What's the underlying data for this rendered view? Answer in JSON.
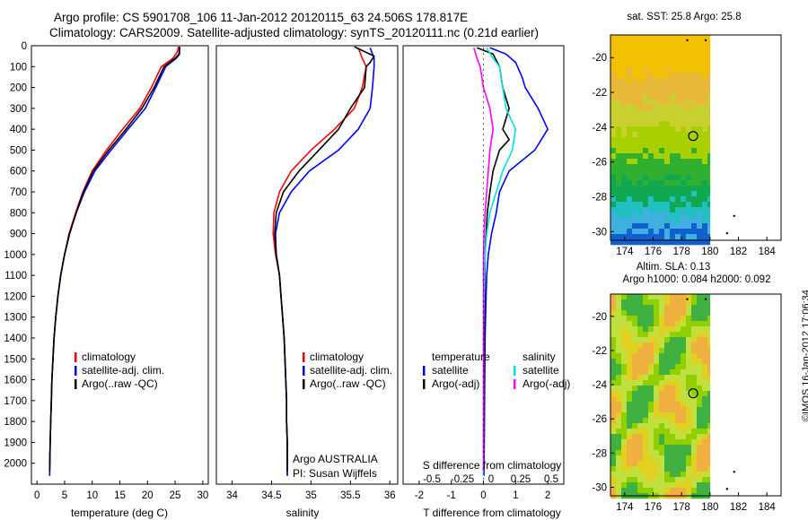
{
  "header": {
    "title_line1": "Argo profile: CS 5901708_106 11-Jan-2012 20120115_63 24.506S 178.817E",
    "title_line2": "Climatology: CARS2009. Satellite-adjusted climatology: synTS_20120111.nc (0.21d earlier)"
  },
  "stamp": "©IMOS 16-Jan-2012 17:06:34",
  "colors": {
    "climatology": "#ff0000",
    "satellite": "#0000ff",
    "argo": "#000000",
    "sal_satellite": "#00e0e0",
    "sal_argo": "#ff00ff"
  },
  "chart_data": [
    {
      "type": "line",
      "panel": "temperature",
      "xlabel": "temperature (deg C)",
      "ylabel": "",
      "xlim": [
        -1,
        31
      ],
      "ylim": [
        2100,
        0
      ],
      "xticks": [
        0,
        5,
        10,
        15,
        20,
        25,
        30
      ],
      "yticks": [
        0,
        100,
        200,
        300,
        400,
        500,
        600,
        700,
        800,
        900,
        1000,
        1100,
        1200,
        1300,
        1400,
        1500,
        1600,
        1700,
        1800,
        1900,
        2000
      ],
      "legend": [
        "climatology",
        "satellite-adj. clim.",
        "Argo(..raw -QC)"
      ],
      "series": [
        {
          "name": "climatology",
          "color": "#ff0000",
          "points": [
            [
              25.6,
              5
            ],
            [
              25.4,
              30
            ],
            [
              24.6,
              60
            ],
            [
              22.5,
              100
            ],
            [
              20.7,
              200
            ],
            [
              18.6,
              300
            ],
            [
              15.5,
              400
            ],
            [
              12.6,
              500
            ],
            [
              10.0,
              600
            ],
            [
              8.3,
              700
            ],
            [
              7.0,
              800
            ],
            [
              5.8,
              900
            ],
            [
              5.0,
              1000
            ],
            [
              4.3,
              1100
            ],
            [
              3.8,
              1200
            ],
            [
              3.4,
              1300
            ],
            [
              3.1,
              1400
            ],
            [
              2.9,
              1500
            ],
            [
              2.7,
              1600
            ],
            [
              2.6,
              1700
            ],
            [
              2.5,
              1800
            ],
            [
              2.4,
              1900
            ],
            [
              2.3,
              2000
            ],
            [
              2.3,
              2060
            ]
          ]
        },
        {
          "name": "satellite-adj. clim.",
          "color": "#0000ff",
          "points": [
            [
              25.8,
              5
            ],
            [
              25.8,
              40
            ],
            [
              25.2,
              60
            ],
            [
              23.3,
              100
            ],
            [
              21.5,
              200
            ],
            [
              19.6,
              300
            ],
            [
              16.5,
              400
            ],
            [
              13.4,
              500
            ],
            [
              10.5,
              600
            ],
            [
              8.6,
              700
            ],
            [
              7.1,
              800
            ],
            [
              5.9,
              900
            ],
            [
              5.0,
              1000
            ],
            [
              4.3,
              1100
            ],
            [
              3.8,
              1200
            ],
            [
              3.4,
              1300
            ],
            [
              3.1,
              1400
            ],
            [
              2.9,
              1500
            ],
            [
              2.7,
              1600
            ],
            [
              2.6,
              1700
            ],
            [
              2.5,
              1800
            ],
            [
              2.4,
              1900
            ],
            [
              2.3,
              2000
            ],
            [
              2.3,
              2060
            ]
          ]
        },
        {
          "name": "Argo(..raw -QC)",
          "color": "#000000",
          "points": [
            [
              25.8,
              5
            ],
            [
              25.7,
              40
            ],
            [
              25.0,
              60
            ],
            [
              23.0,
              100
            ],
            [
              21.2,
              200
            ],
            [
              19.0,
              300
            ],
            [
              16.1,
              400
            ],
            [
              13.0,
              500
            ],
            [
              10.2,
              600
            ],
            [
              8.4,
              700
            ],
            [
              7.1,
              800
            ],
            [
              5.9,
              900
            ],
            [
              5.0,
              1000
            ],
            [
              4.3,
              1100
            ],
            [
              3.8,
              1200
            ],
            [
              3.4,
              1300
            ],
            [
              3.1,
              1400
            ],
            [
              2.9,
              1500
            ],
            [
              2.7,
              1600
            ],
            [
              2.6,
              1700
            ],
            [
              2.5,
              1800
            ],
            [
              2.4,
              1900
            ],
            [
              2.35,
              2000
            ],
            [
              2.3,
              2040
            ]
          ]
        }
      ]
    },
    {
      "type": "line",
      "panel": "salinity",
      "xlabel": "salinity",
      "xlim": [
        33.8,
        36.1
      ],
      "ylim": [
        2100,
        0
      ],
      "xticks": [
        34,
        34.5,
        35,
        35.5,
        36
      ],
      "legend": [
        "climatology",
        "satellite-adj. clim.",
        "Argo(..raw -QC)"
      ],
      "annotation": [
        "Argo AUSTRALIA",
        "PI: Susan Wijffels"
      ],
      "series": [
        {
          "name": "climatology",
          "color": "#ff0000",
          "points": [
            [
              35.6,
              10
            ],
            [
              35.65,
              60
            ],
            [
              35.7,
              100
            ],
            [
              35.65,
              200
            ],
            [
              35.55,
              300
            ],
            [
              35.3,
              400
            ],
            [
              35.0,
              500
            ],
            [
              34.75,
              600
            ],
            [
              34.6,
              700
            ],
            [
              34.53,
              800
            ],
            [
              34.52,
              900
            ],
            [
              34.55,
              1000
            ],
            [
              34.6,
              1100
            ],
            [
              34.62,
              1200
            ],
            [
              34.64,
              1300
            ],
            [
              34.66,
              1400
            ],
            [
              34.67,
              1500
            ],
            [
              34.68,
              1600
            ],
            [
              34.69,
              1700
            ],
            [
              34.69,
              1800
            ],
            [
              34.7,
              1900
            ],
            [
              34.7,
              2000
            ],
            [
              34.7,
              2060
            ]
          ]
        },
        {
          "name": "satellite-adj. clim.",
          "color": "#0000ff",
          "points": [
            [
              35.75,
              10
            ],
            [
              35.8,
              60
            ],
            [
              35.8,
              100
            ],
            [
              35.78,
              200
            ],
            [
              35.75,
              300
            ],
            [
              35.6,
              400
            ],
            [
              35.35,
              500
            ],
            [
              34.98,
              600
            ],
            [
              34.75,
              700
            ],
            [
              34.6,
              800
            ],
            [
              34.55,
              900
            ],
            [
              34.56,
              1000
            ],
            [
              34.6,
              1100
            ],
            [
              34.62,
              1200
            ],
            [
              34.64,
              1300
            ],
            [
              34.66,
              1400
            ],
            [
              34.67,
              1500
            ],
            [
              34.68,
              1600
            ],
            [
              34.69,
              1700
            ],
            [
              34.69,
              1800
            ],
            [
              34.7,
              1900
            ],
            [
              34.7,
              2000
            ],
            [
              34.7,
              2060
            ]
          ]
        },
        {
          "name": "Argo(..raw -QC)",
          "color": "#000000",
          "points": [
            [
              35.55,
              5
            ],
            [
              35.8,
              50
            ],
            [
              35.75,
              80
            ],
            [
              35.7,
              100
            ],
            [
              35.68,
              200
            ],
            [
              35.5,
              300
            ],
            [
              35.35,
              400
            ],
            [
              35.1,
              500
            ],
            [
              34.85,
              600
            ],
            [
              34.65,
              700
            ],
            [
              34.56,
              800
            ],
            [
              34.54,
              900
            ],
            [
              34.56,
              1000
            ],
            [
              34.6,
              1100
            ],
            [
              34.62,
              1200
            ],
            [
              34.64,
              1300
            ],
            [
              34.66,
              1400
            ],
            [
              34.67,
              1500
            ],
            [
              34.68,
              1600
            ],
            [
              34.69,
              1700
            ],
            [
              34.69,
              1800
            ],
            [
              34.7,
              1900
            ],
            [
              34.7,
              2000
            ],
            [
              34.7,
              2040
            ]
          ]
        }
      ]
    },
    {
      "type": "line",
      "panel": "difference",
      "xlabel": "T difference from climatology",
      "xlabel_top": "S difference from climatology",
      "xlim": [
        -2.5,
        2.5
      ],
      "ylim": [
        2100,
        0
      ],
      "xticks_T": [
        -2,
        -1,
        0,
        1,
        2
      ],
      "xticks_S": [
        "-0.5",
        "-0.25",
        "0",
        "0.25",
        "0.5"
      ],
      "legend_temperature": [
        "temperature",
        "satellite",
        "Argo(-adj)"
      ],
      "legend_salinity": [
        "salinity",
        "satellite",
        "Argo(-adj)"
      ],
      "series": [
        {
          "name": "temperature satellite",
          "color": "#0000ff",
          "points": [
            [
              0.2,
              10
            ],
            [
              0.7,
              40
            ],
            [
              1.0,
              80
            ],
            [
              1.2,
              150
            ],
            [
              1.3,
              200
            ],
            [
              1.7,
              300
            ],
            [
              2.0,
              400
            ],
            [
              1.6,
              500
            ],
            [
              0.8,
              600
            ],
            [
              0.5,
              700
            ],
            [
              0.4,
              800
            ],
            [
              0.25,
              900
            ],
            [
              0.15,
              1000
            ],
            [
              0.1,
              1100
            ],
            [
              0.08,
              1200
            ],
            [
              0.05,
              1400
            ],
            [
              0.04,
              1600
            ],
            [
              0.03,
              1800
            ],
            [
              0.02,
              2000
            ],
            [
              0.02,
              2060
            ]
          ]
        },
        {
          "name": "temperature Argo(-adj)",
          "color": "#000000",
          "points": [
            [
              -0.2,
              10
            ],
            [
              0.3,
              40
            ],
            [
              0.5,
              100
            ],
            [
              0.6,
              200
            ],
            [
              0.8,
              300
            ],
            [
              0.6,
              400
            ],
            [
              0.8,
              450
            ],
            [
              0.5,
              500
            ],
            [
              0.3,
              600
            ],
            [
              0.2,
              700
            ],
            [
              0.12,
              800
            ],
            [
              0.08,
              900
            ],
            [
              0.05,
              1000
            ],
            [
              0.04,
              1200
            ],
            [
              0.03,
              1400
            ],
            [
              0.02,
              1600
            ],
            [
              0.02,
              1800
            ],
            [
              0.01,
              2000
            ],
            [
              0.01,
              2040
            ]
          ]
        },
        {
          "name": "salinity satellite",
          "color": "#00e0e0",
          "points": [
            [
              0.1,
              10
            ],
            [
              0.3,
              60
            ],
            [
              0.5,
              100
            ],
            [
              0.6,
              200
            ],
            [
              0.7,
              300
            ],
            [
              1.0,
              400
            ],
            [
              0.9,
              500
            ],
            [
              0.6,
              600
            ],
            [
              0.4,
              700
            ],
            [
              0.2,
              800
            ],
            [
              0.1,
              900
            ],
            [
              0.05,
              1000
            ],
            [
              0.02,
              1200
            ],
            [
              0.0,
              1400
            ],
            [
              0.0,
              1600
            ],
            [
              0.0,
              1800
            ],
            [
              0.0,
              2000
            ],
            [
              0.0,
              2060
            ]
          ]
        },
        {
          "name": "salinity Argo(-adj)",
          "color": "#ff00ff",
          "points": [
            [
              -0.3,
              10
            ],
            [
              -0.2,
              60
            ],
            [
              -0.1,
              100
            ],
            [
              0.0,
              200
            ],
            [
              0.2,
              300
            ],
            [
              0.3,
              400
            ],
            [
              0.2,
              500
            ],
            [
              0.15,
              600
            ],
            [
              0.1,
              700
            ],
            [
              0.05,
              800
            ],
            [
              0.02,
              900
            ],
            [
              0.0,
              1000
            ],
            [
              0.0,
              1400
            ],
            [
              0.0,
              1800
            ],
            [
              0.0,
              2040
            ]
          ]
        }
      ]
    },
    {
      "type": "heatmap",
      "panel": "sst-map",
      "title": "sat. SST: 25.8 Argo: 25.8",
      "xlim": [
        173,
        185
      ],
      "ylim": [
        -30.5,
        -18.7
      ],
      "xticks": [
        174,
        176,
        178,
        180,
        182,
        184
      ],
      "yticks": [
        -20,
        -22,
        -24,
        -26,
        -28,
        -30
      ],
      "marker": {
        "lon": 178.817,
        "lat": -24.506
      }
    },
    {
      "type": "heatmap",
      "panel": "sla-map",
      "title": "Altim. SLA: 0.13",
      "subtitle": "Argo h1000: 0.084 h2000: 0.092",
      "xlim": [
        173,
        185
      ],
      "ylim": [
        -30.5,
        -18.7
      ],
      "xticks": [
        174,
        176,
        178,
        180,
        182,
        184
      ],
      "yticks": [
        -20,
        -22,
        -24,
        -26,
        -28,
        -30
      ],
      "marker": {
        "lon": 178.817,
        "lat": -24.506
      }
    }
  ]
}
